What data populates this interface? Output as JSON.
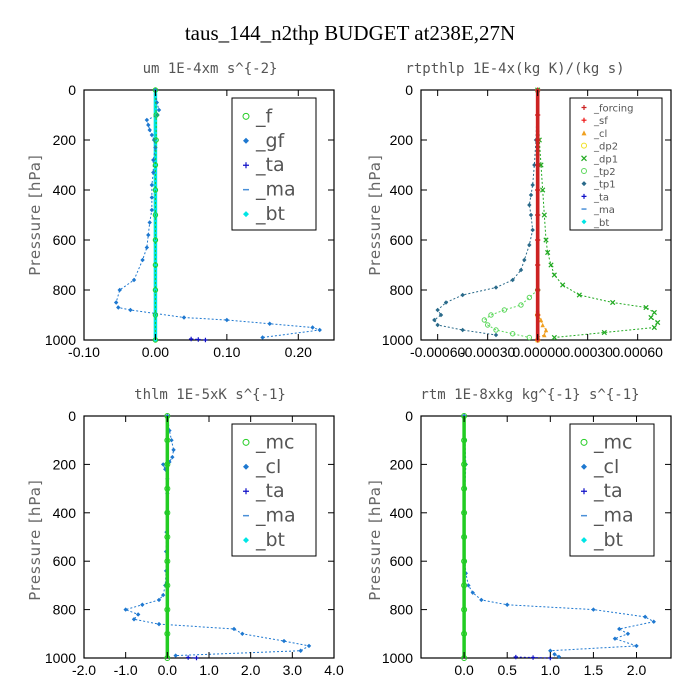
{
  "figure": {
    "title": "taus_144_n2thp  BUDGET at238E,27N"
  },
  "chart_data": [
    {
      "type": "line",
      "title": "um   1E-4xm  s^{-2}",
      "ylabel": "Pressure [hPa]",
      "xlim": [
        -0.1,
        0.25
      ],
      "xticks": [
        "-0.10",
        "0.00",
        "0.10",
        "0.20"
      ],
      "xtick_values": [
        -0.1,
        0.0,
        0.1,
        0.2
      ],
      "ylim": [
        1000,
        0
      ],
      "yticks": [
        0,
        200,
        400,
        600,
        800,
        1000
      ],
      "legend": [
        "_f",
        "_gf",
        "_ta",
        "_ma",
        "_bt"
      ],
      "series": [
        {
          "name": "_f",
          "color": "#22cc22",
          "marker": "circle",
          "x": [
            0.0,
            0.001,
            0.001,
            0.0,
            0.0,
            0.0,
            0.0,
            0.0,
            0.0,
            0.0,
            0.0
          ],
          "y": [
            0,
            100,
            200,
            300,
            400,
            500,
            600,
            700,
            800,
            900,
            1000
          ]
        },
        {
          "name": "_gf",
          "color": "#1e78d0",
          "marker": "diamond",
          "x": [
            0.0,
            0.002,
            0.005,
            0.003,
            -0.012,
            -0.01,
            -0.008,
            -0.005,
            -0.002,
            0.0,
            -0.003,
            -0.003,
            -0.005,
            -0.005,
            -0.005,
            -0.008,
            -0.01,
            -0.012,
            -0.018,
            -0.03,
            -0.05,
            -0.055,
            -0.052,
            -0.035,
            0.04,
            0.1,
            0.16,
            0.22,
            0.23,
            0.15
          ],
          "y": [
            0,
            50,
            80,
            100,
            120,
            140,
            160,
            180,
            200,
            230,
            280,
            330,
            380,
            430,
            480,
            530,
            580,
            630,
            680,
            760,
            800,
            850,
            870,
            880,
            910,
            920,
            935,
            950,
            960,
            990
          ]
        },
        {
          "name": "_ta",
          "color": "#1010c8",
          "marker": "plus",
          "x": [
            0.05,
            0.06,
            0.07
          ],
          "y": [
            996,
            998,
            1000
          ]
        },
        {
          "name": "_ma",
          "color": "#4a90d8",
          "marker": "dash",
          "x": [],
          "y": []
        },
        {
          "name": "_bt",
          "color": "#00e5e5",
          "marker": "diamond",
          "x": [
            0.0,
            0.0,
            0.0,
            0.0,
            0.0,
            0.0
          ],
          "y": [
            0,
            200,
            400,
            600,
            800,
            1000
          ]
        }
      ]
    },
    {
      "type": "line",
      "title": "rtpthlp   1E-4x(kg K)/(kg s)",
      "ylabel": "Pressure [hPa]",
      "xlim": [
        -0.0007,
        0.0008
      ],
      "xticks": [
        "-0.00060",
        "-0.00030",
        "0.00000",
        "0.00030",
        "0.00060"
      ],
      "xtick_values": [
        -0.0006,
        -0.0003,
        0.0,
        0.0003,
        0.0006
      ],
      "ylim": [
        1000,
        0
      ],
      "yticks": [
        0,
        200,
        400,
        600,
        800,
        1000
      ],
      "legend": [
        "_forcing",
        "_sf",
        "_cl",
        "_dp2",
        "_dp1",
        "_tp2",
        "_tp1",
        "_ta",
        "_ma",
        "_bt"
      ],
      "series": [
        {
          "name": "_forcing",
          "color": "#cc2222",
          "marker": "plus",
          "x": [
            0,
            0,
            0,
            0,
            0,
            0,
            0,
            0,
            0,
            0,
            0
          ],
          "y": [
            0,
            100,
            200,
            300,
            400,
            500,
            600,
            700,
            800,
            900,
            1000
          ]
        },
        {
          "name": "_sf",
          "color": "#ee1111",
          "marker": "plus",
          "x": [
            0,
            0,
            0,
            0,
            0,
            0,
            0,
            0,
            0,
            0,
            0
          ],
          "y": [
            0,
            100,
            200,
            300,
            400,
            500,
            600,
            700,
            800,
            900,
            1000
          ]
        },
        {
          "name": "_cl",
          "color": "#f0a020",
          "marker": "triangle",
          "x": [
            0.0,
            0.0,
            2e-05,
            3e-05,
            5e-05,
            4e-05,
            0.0,
            0.0
          ],
          "y": [
            880,
            900,
            920,
            940,
            960,
            980,
            990,
            1000
          ]
        },
        {
          "name": "_dp2",
          "color": "#f0e020",
          "marker": "circle",
          "x": [
            0.0,
            0.0
          ],
          "y": [
            900,
            1000
          ]
        },
        {
          "name": "_dp1",
          "color": "#22aa22",
          "marker": "cross",
          "x": [
            0.0,
            1e-05,
            2e-05,
            3e-05,
            4e-05,
            5e-05,
            6e-05,
            8e-05,
            0.0001,
            0.00015,
            0.00025,
            0.00045,
            0.00065,
            0.0007,
            0.00068,
            0.00072,
            0.0007,
            0.0004,
            0.0001
          ],
          "y": [
            0,
            200,
            300,
            400,
            500,
            600,
            650,
            700,
            740,
            780,
            820,
            850,
            870,
            890,
            910,
            930,
            950,
            970,
            990
          ]
        },
        {
          "name": "_tp2",
          "color": "#5cd85c",
          "marker": "circle",
          "x": [
            0.0,
            -5e-05,
            -0.0001,
            -0.0002,
            -0.00028,
            -0.00032,
            -0.0003,
            -0.00025,
            -0.00015,
            -5e-05
          ],
          "y": [
            800,
            830,
            860,
            880,
            900,
            920,
            940,
            960,
            975,
            990
          ]
        },
        {
          "name": "_tp1",
          "color": "#2a6a8a",
          "marker": "diamond",
          "x": [
            0.0,
            -1e-05,
            -2e-05,
            -3e-05,
            -4e-05,
            -5e-05,
            -4e-05,
            -3e-05,
            -5e-05,
            -8e-05,
            -0.0001,
            -0.00015,
            -0.00025,
            -0.00045,
            -0.00055,
            -0.0006,
            -0.00058,
            -0.00062,
            -0.0006,
            -0.00045,
            -0.00025
          ],
          "y": [
            0,
            200,
            300,
            380,
            420,
            460,
            500,
            560,
            620,
            680,
            720,
            760,
            790,
            820,
            850,
            880,
            900,
            920,
            940,
            960,
            980
          ]
        },
        {
          "name": "_ta",
          "color": "#1010c8",
          "marker": "plus",
          "x": [],
          "y": []
        },
        {
          "name": "_ma",
          "color": "#4a90d8",
          "marker": "dash",
          "x": [],
          "y": []
        },
        {
          "name": "_bt",
          "color": "#00e5e5",
          "marker": "diamond",
          "x": [],
          "y": []
        }
      ]
    },
    {
      "type": "line",
      "title": "thlm   1E-5xK  s^{-1}",
      "ylabel": "Pressure [hPa]",
      "xlim": [
        -2.0,
        4.0
      ],
      "xticks": [
        "-2.0",
        "-1.0",
        "0.0",
        "1.0",
        "2.0",
        "3.0",
        "4.0"
      ],
      "xtick_values": [
        -2.0,
        -1.0,
        0.0,
        1.0,
        2.0,
        3.0,
        4.0
      ],
      "ylim": [
        1000,
        0
      ],
      "yticks": [
        0,
        200,
        400,
        600,
        800,
        1000
      ],
      "legend": [
        "_mc",
        "_cl",
        "_ta",
        "_ma",
        "_bt"
      ],
      "series": [
        {
          "name": "_mc",
          "color": "#22cc22",
          "marker": "circle",
          "x": [
            0,
            0,
            0,
            0,
            0,
            0,
            0,
            0,
            0,
            0,
            0
          ],
          "y": [
            0,
            100,
            200,
            300,
            400,
            500,
            600,
            700,
            800,
            900,
            1000
          ]
        },
        {
          "name": "_cl",
          "color": "#1e78d0",
          "marker": "diamond",
          "x": [
            0.0,
            0.05,
            0.1,
            0.15,
            0.12,
            0.05,
            -0.1,
            -0.05,
            0.0,
            0.0,
            -0.02,
            -0.02,
            -0.03,
            -0.03,
            -0.05,
            -0.1,
            -0.2,
            -0.6,
            -1.0,
            -0.7,
            -0.8,
            -0.2,
            1.6,
            1.8,
            2.8,
            3.4,
            3.2,
            0.2
          ],
          "y": [
            0,
            60,
            100,
            140,
            170,
            190,
            200,
            220,
            260,
            320,
            400,
            480,
            560,
            640,
            700,
            740,
            760,
            780,
            800,
            820,
            840,
            860,
            880,
            900,
            930,
            950,
            970,
            990
          ]
        },
        {
          "name": "_ta",
          "color": "#1010c8",
          "marker": "plus",
          "x": [
            0.5,
            0.7
          ],
          "y": [
            998,
            1000
          ]
        },
        {
          "name": "_ma",
          "color": "#4a90d8",
          "marker": "dash",
          "x": [],
          "y": []
        },
        {
          "name": "_bt",
          "color": "#00e5e5",
          "marker": "diamond",
          "x": [],
          "y": []
        }
      ]
    },
    {
      "type": "line",
      "title": "rtm   1E-8xkg  kg^{-1}  s^{-1}",
      "ylabel": "Pressure [hPa]",
      "xlim": [
        -0.5,
        2.4
      ],
      "xticks": [
        "0.0",
        "0.5",
        "1.0",
        "1.5",
        "2.0"
      ],
      "xtick_values": [
        0.0,
        0.5,
        1.0,
        1.5,
        2.0
      ],
      "ylim": [
        1000,
        0
      ],
      "yticks": [
        0,
        200,
        400,
        600,
        800,
        1000
      ],
      "legend": [
        "_mc",
        "_cl",
        "_ta",
        "_ma",
        "_bt"
      ],
      "series": [
        {
          "name": "_mc",
          "color": "#22cc22",
          "marker": "circle",
          "x": [
            0,
            0,
            0,
            0,
            0,
            0,
            0,
            0,
            0,
            0,
            0
          ],
          "y": [
            0,
            100,
            200,
            300,
            400,
            500,
            600,
            700,
            800,
            900,
            1000
          ]
        },
        {
          "name": "_cl",
          "color": "#1e78d0",
          "marker": "diamond",
          "x": [
            0.0,
            0.01,
            0.02,
            0.01,
            0.0,
            0.0,
            0.01,
            0.02,
            0.05,
            0.1,
            0.2,
            0.5,
            1.5,
            2.1,
            2.2,
            1.8,
            1.9,
            1.75,
            2.0,
            1.0,
            1.05,
            1.1
          ],
          "y": [
            0,
            100,
            200,
            300,
            400,
            500,
            600,
            650,
            700,
            730,
            760,
            780,
            800,
            830,
            850,
            880,
            900,
            920,
            950,
            970,
            985,
            995
          ]
        },
        {
          "name": "_ta",
          "color": "#1010c8",
          "marker": "plus",
          "x": [
            0.6,
            0.8,
            1.0
          ],
          "y": [
            996,
            998,
            1000
          ]
        },
        {
          "name": "_ma",
          "color": "#4a90d8",
          "marker": "dash",
          "x": [],
          "y": []
        },
        {
          "name": "_bt",
          "color": "#00e5e5",
          "marker": "diamond",
          "x": [],
          "y": []
        }
      ]
    }
  ]
}
